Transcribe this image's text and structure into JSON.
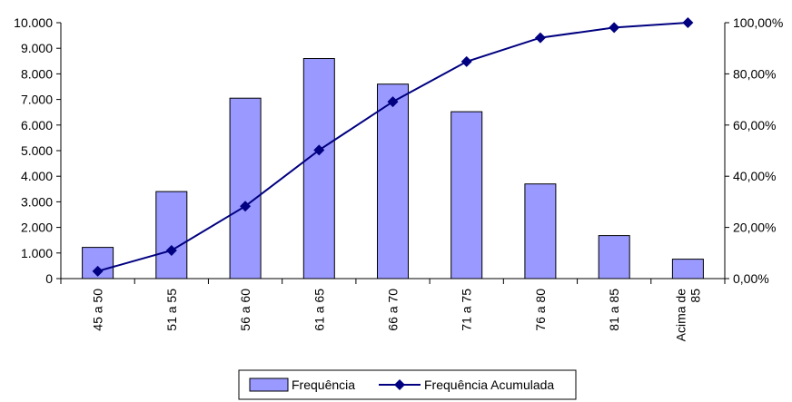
{
  "chart_data": {
    "type": "bar",
    "categories": [
      "45 a 50",
      "51 a 55",
      "56 a 60",
      "61 a 65",
      "66 a 70",
      "71 a 75",
      "76 a 80",
      "81 a 85",
      "Acima de 85"
    ],
    "category_label_lines": [
      [
        "45 a 50"
      ],
      [
        "51 a 55"
      ],
      [
        "56 a 60"
      ],
      [
        "61 a 65"
      ],
      [
        "66 a 70"
      ],
      [
        "71 a 75"
      ],
      [
        "76 a 80"
      ],
      [
        "81 a 85"
      ],
      [
        "Acima de",
        "85"
      ]
    ],
    "series": [
      {
        "name": "Frequência",
        "type": "bar",
        "axis": "left",
        "color": "#9999FF",
        "values": [
          1220,
          3400,
          7050,
          8600,
          7600,
          6520,
          3700,
          1680,
          760
        ]
      },
      {
        "name": "Frequência Acumulada",
        "type": "line",
        "axis": "right",
        "color": "#000080",
        "marker": "diamond",
        "values": [
          2.9,
          11.0,
          28.3,
          50.2,
          69.1,
          84.8,
          94.1,
          98.1,
          100.0
        ]
      }
    ],
    "y_left": {
      "ylim": [
        0,
        10000
      ],
      "ticks": [
        0,
        1000,
        2000,
        3000,
        4000,
        5000,
        6000,
        7000,
        8000,
        9000,
        10000
      ],
      "tick_labels": [
        "0",
        "1.000",
        "2.000",
        "3.000",
        "4.000",
        "5.000",
        "6.000",
        "7.000",
        "8.000",
        "9.000",
        "10.000"
      ]
    },
    "y_right": {
      "ylim": [
        0,
        100
      ],
      "ticks": [
        0,
        20,
        40,
        60,
        80,
        100
      ],
      "tick_labels": [
        "0,00%",
        "20,00%",
        "40,00%",
        "60,00%",
        "80,00%",
        "100,00%"
      ]
    },
    "grid": false,
    "legend": {
      "position": "bottom",
      "entries": [
        "Frequência",
        "Frequência Acumulada"
      ]
    }
  }
}
